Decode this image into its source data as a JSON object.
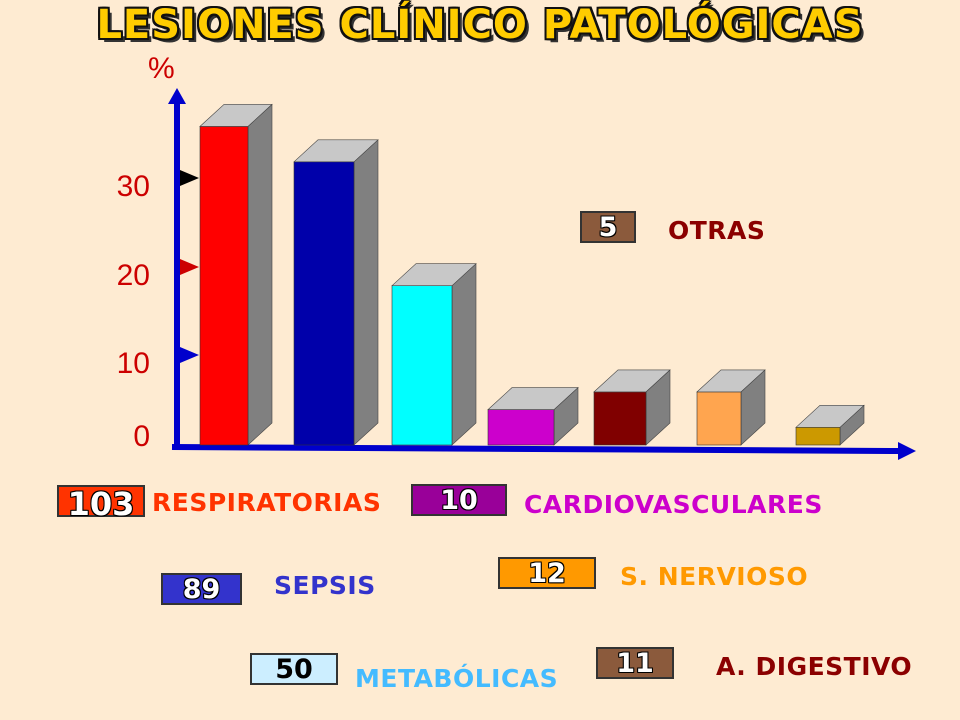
{
  "title": "LESIONES CLÍNICO PATOLÓGICAS",
  "chart_data": {
    "type": "bar",
    "ylabel": "%",
    "yticks": [
      "0",
      "10",
      "20",
      "30"
    ],
    "ylim": [
      0,
      38
    ],
    "grid": false,
    "bars": [
      {
        "value": 36,
        "color": "#FF0000"
      },
      {
        "value": 32,
        "color": "#0000AA"
      },
      {
        "value": 18,
        "color": "#00FFFF"
      },
      {
        "value": 4,
        "color": "#CC00CC"
      },
      {
        "value": 6,
        "color": "#800000"
      },
      {
        "value": 6,
        "color": "#FFA54F"
      },
      {
        "value": 2,
        "color": "#CC9900"
      }
    ],
    "legend": [
      {
        "count": "103",
        "label": "RESPIRATORIAS",
        "box_color": "#FF3300",
        "label_color": "#FF3300"
      },
      {
        "count": "89",
        "label": "SEPSIS",
        "box_color": "#3333CC",
        "label_color": "#3333CC"
      },
      {
        "count": "50",
        "label": "METABÓLICAS",
        "box_color": "#CCEEFF",
        "label_color": "#44BBFF"
      },
      {
        "count": "10",
        "label": "CARDIOVASCULARES",
        "box_color": "#990099",
        "label_color": "#CC00CC"
      },
      {
        "count": "12",
        "label": "S. NERVIOSO",
        "box_color": "#FF9900",
        "label_color": "#FF9900"
      },
      {
        "count": "11",
        "label": "A. DIGESTIVO",
        "box_color": "#8B5A3C",
        "label_color": "#8B0000"
      },
      {
        "count": "5",
        "label": "OTRAS",
        "box_color": "#8B5A3C",
        "label_color": "#8B0000"
      }
    ]
  }
}
